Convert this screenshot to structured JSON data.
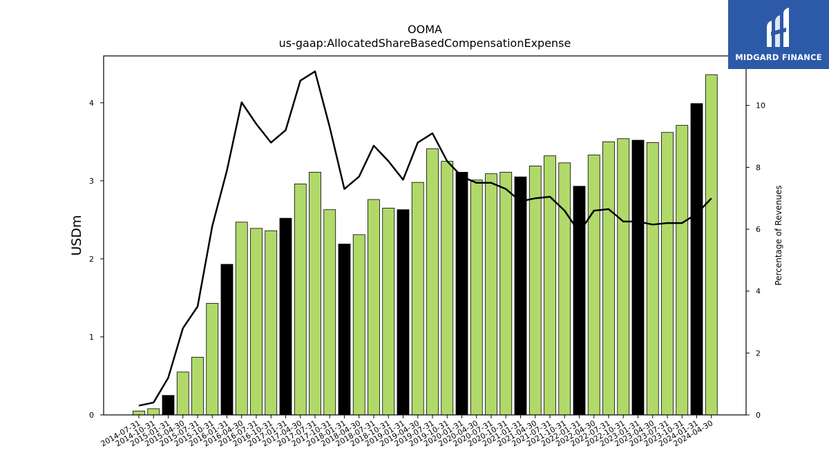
{
  "brand": {
    "name": "MIDGARD FINANCE",
    "icon": "midgard-logo-icon",
    "background": "#2c5aa8"
  },
  "chart_data": {
    "type": "bar",
    "title": "OOMA",
    "subtitle": "us-gaap:AllocatedShareBasedCompensationExpense",
    "ylabel": "USDm",
    "y2label": "Percentage of Revenues",
    "ylim": [
      0,
      4.6
    ],
    "y2lim": [
      0,
      11.6
    ],
    "yticks": [
      0,
      1,
      2,
      3,
      4
    ],
    "y2ticks": [
      0,
      2,
      4,
      6,
      8,
      10
    ],
    "grid": false,
    "colors": {
      "quarter_bar": "#b0d96a",
      "fiscal_year_end_bar": "#000000",
      "line": "#000000"
    },
    "categories": [
      "2014-07-31",
      "2014-10-31",
      "2015-01-31",
      "2015-04-30",
      "2015-07-31",
      "2015-10-31",
      "2016-01-31",
      "2016-04-30",
      "2016-07-31",
      "2016-10-31",
      "2017-01-31",
      "2017-04-30",
      "2017-07-31",
      "2017-10-31",
      "2018-01-31",
      "2018-04-30",
      "2018-07-31",
      "2018-10-31",
      "2019-01-31",
      "2019-04-30",
      "2019-07-31",
      "2019-10-31",
      "2020-01-31",
      "2020-04-30",
      "2020-07-31",
      "2020-10-31",
      "2021-01-31",
      "2021-04-30",
      "2021-07-31",
      "2021-10-31",
      "2022-01-31",
      "2022-04-30",
      "2022-07-31",
      "2022-10-31",
      "2023-01-31",
      "2023-04-30",
      "2023-07-31",
      "2023-10-31",
      "2024-01-31",
      "2024-04-30"
    ],
    "series": [
      {
        "kind": "bar",
        "values": [
          0.05,
          0.08,
          0.25,
          0.55,
          0.74,
          1.43,
          1.93,
          2.47,
          2.39,
          2.36,
          2.52,
          2.96,
          3.11,
          2.63,
          2.19,
          2.31,
          2.76,
          2.65,
          2.63,
          2.98,
          3.41,
          3.25,
          3.11,
          3.01,
          3.09,
          3.11,
          3.05,
          3.19,
          3.32,
          3.23,
          2.93,
          3.33,
          3.5,
          3.54,
          3.52,
          3.49,
          3.62,
          3.71,
          3.99,
          4.36
        ],
        "fiscal_year_end": [
          false,
          false,
          true,
          false,
          false,
          false,
          true,
          false,
          false,
          false,
          true,
          false,
          false,
          false,
          true,
          false,
          false,
          false,
          true,
          false,
          false,
          false,
          true,
          false,
          false,
          false,
          true,
          false,
          false,
          false,
          true,
          false,
          false,
          false,
          true,
          false,
          false,
          false,
          true,
          false
        ]
      },
      {
        "kind": "line",
        "axis": "right",
        "values": [
          0.3,
          0.4,
          1.2,
          2.8,
          3.5,
          6.1,
          7.9,
          10.1,
          9.4,
          8.8,
          9.2,
          10.8,
          11.1,
          9.3,
          7.3,
          7.7,
          8.7,
          8.2,
          7.6,
          8.8,
          9.1,
          8.2,
          7.7,
          7.5,
          7.5,
          7.3,
          6.9,
          7.0,
          7.05,
          6.6,
          5.9,
          6.6,
          6.65,
          6.25,
          6.25,
          6.15,
          6.2,
          6.2,
          6.5,
          7.0
        ]
      }
    ]
  }
}
